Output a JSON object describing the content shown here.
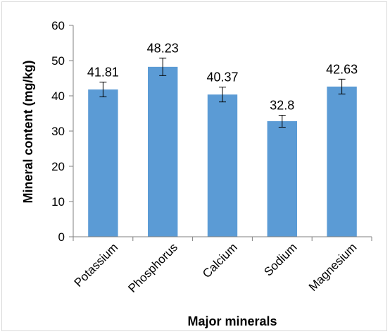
{
  "chart_data": {
    "type": "bar",
    "title": "",
    "xlabel": "Major minerals",
    "ylabel": "Mineral content (mg/kg)",
    "categories": [
      "Potassium",
      "Phosphorus",
      "Calcium",
      "Sodium",
      "Magnesium"
    ],
    "values": [
      41.81,
      48.23,
      40.37,
      32.8,
      42.63
    ],
    "value_labels": [
      "41.81",
      "48.23",
      "40.37",
      "32.8",
      "42.63"
    ],
    "error_bars": [
      2.1,
      2.5,
      2.1,
      1.7,
      2.1
    ],
    "ylim": [
      0,
      60
    ],
    "yticks": [
      0,
      10,
      20,
      30,
      40,
      50,
      60
    ],
    "ytick_labels": [
      "0",
      "10",
      "20",
      "30",
      "40",
      "50",
      "60"
    ],
    "grid": false,
    "legend": "none",
    "bar_color": "#5b9bd5"
  }
}
